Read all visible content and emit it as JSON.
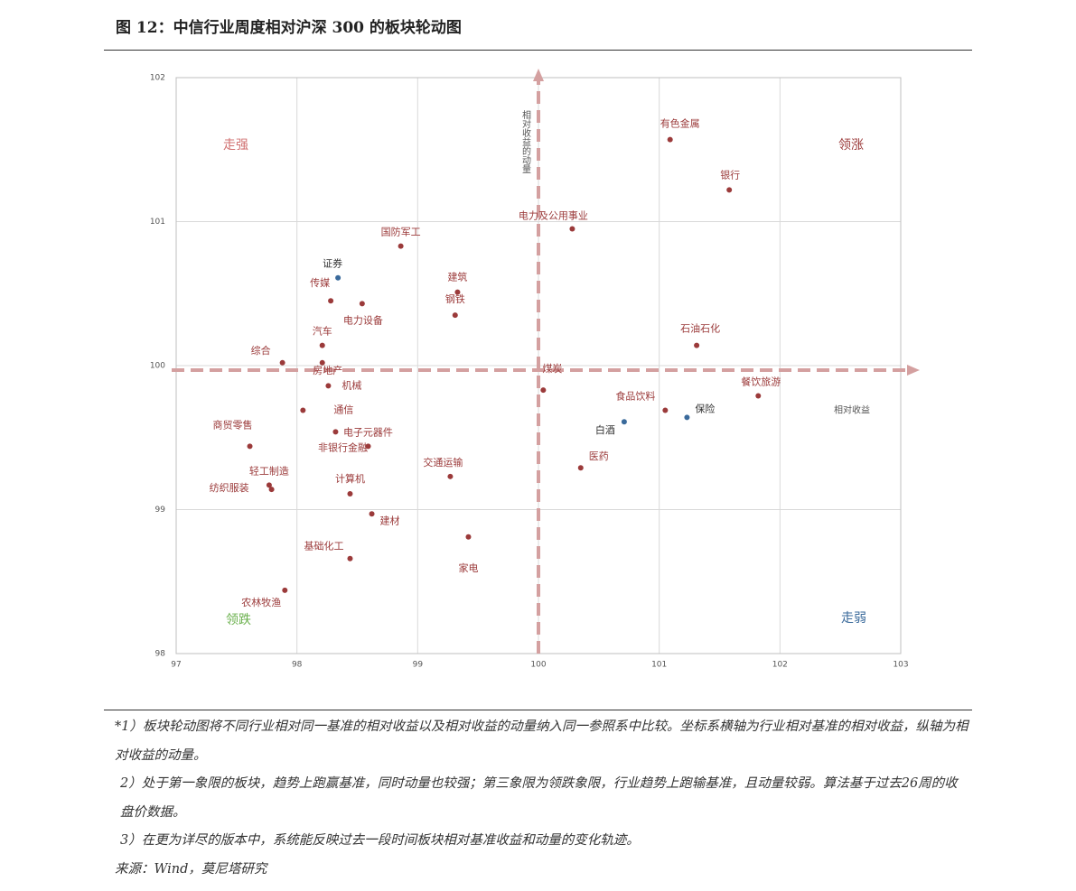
{
  "chart_data": {
    "type": "scatter",
    "title": "图 12：中信行业周度相对沪深 300 的板块轮动图",
    "x_label": "相对收益",
    "y_label": "相对收益的动量",
    "xlim": [
      97,
      103
    ],
    "xticks": [
      97,
      98,
      99,
      100,
      101,
      102,
      103
    ],
    "ylim": [
      98,
      102
    ],
    "yticks": [
      98,
      99,
      100,
      101,
      102
    ],
    "grid": true,
    "crosshair": {
      "x": 100,
      "y": 100,
      "color": "#d4a0a0"
    },
    "series": [
      {
        "color": "#9b3a3a",
        "labels": [
          "有色金属",
          "银行",
          "电力及公用事业",
          "国防军工",
          "传媒",
          "电力设备",
          "建筑",
          "钢铁",
          "石油石化",
          "汽车",
          "综合",
          "房地产",
          "机械",
          "煤炭",
          "通信",
          "餐饮旅游",
          "食品饮料",
          "电子元器件",
          "商贸零售",
          "非银行金融",
          "医药",
          "交通运输",
          "轻工制造",
          "纺织服装",
          "计算机",
          "建材",
          "家电",
          "基础化工",
          "农林牧渔"
        ],
        "x": [
          101.09,
          101.58,
          100.28,
          98.86,
          98.28,
          98.54,
          99.33,
          99.31,
          101.31,
          98.21,
          97.88,
          98.21,
          98.26,
          100.04,
          98.05,
          101.82,
          101.05,
          98.32,
          97.61,
          98.59,
          100.35,
          99.27,
          97.77,
          97.79,
          98.44,
          98.62,
          99.42,
          98.44,
          97.9
        ],
        "values": [
          101.57,
          101.22,
          100.95,
          100.83,
          100.45,
          100.43,
          100.51,
          100.35,
          100.14,
          100.14,
          100.02,
          100.02,
          99.86,
          99.83,
          99.69,
          99.79,
          99.69,
          99.54,
          99.44,
          99.44,
          99.29,
          99.23,
          99.17,
          99.14,
          99.11,
          98.97,
          98.81,
          98.66,
          98.44
        ]
      },
      {
        "color": "#3a6a9b",
        "labels": [
          "证券",
          "保险",
          "白酒"
        ],
        "x": [
          98.34,
          101.23,
          100.71
        ],
        "values": [
          100.61,
          99.64,
          99.61
        ]
      }
    ],
    "annotations": [
      {
        "text": "走强",
        "color": "#d07070"
      },
      {
        "text": "领涨",
        "color": "#9b3a3a"
      },
      {
        "text": "领跌",
        "color": "#6ab04c"
      },
      {
        "text": "走弱",
        "color": "#3a6a9b"
      }
    ]
  },
  "footer": {
    "notes": [
      "*1）板块轮动图将不同行业相对同一基准的相对收益以及相对收益的动量纳入同一参照系中比较。坐标系横轴为行业相对基准的相对收益，纵轴为相对收益的动量。",
      "2）处于第一象限的板块，趋势上跑赢基准，同时动量也较强；第三象限为领跌象限，行业趋势上跑输基准，且动量较弱。算法基于过去26周的收盘价数据。",
      "3）在更为详尽的版本中，系统能反映过去一段时间板块相对基准收益和动量的变化轨迹。"
    ],
    "source": "来源：Wind，莫尼塔研究"
  }
}
